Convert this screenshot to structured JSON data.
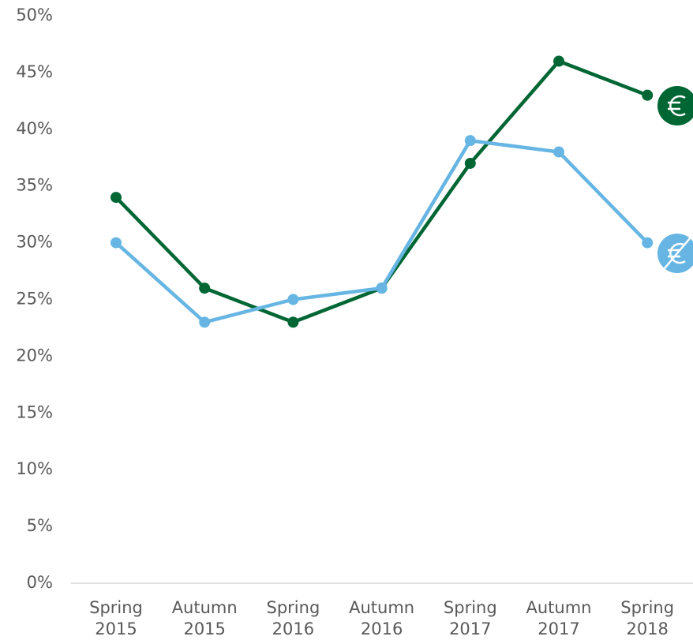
{
  "chart_data": {
    "type": "line",
    "categories": [
      "Spring 2015",
      "Autumn 2015",
      "Spring 2016",
      "Autumn 2016",
      "Spring 2017",
      "Autumn 2017",
      "Spring 2018"
    ],
    "series": [
      {
        "color": "#006633",
        "values": [
          34,
          26,
          23,
          26,
          37,
          46,
          43
        ]
      },
      {
        "color": "#66b5e3",
        "values": [
          30,
          23,
          25,
          26,
          39,
          38,
          30
        ]
      }
    ],
    "ylim": [
      0,
      50
    ],
    "yticks": [
      {
        "value": 0,
        "label": "0%"
      },
      {
        "value": 5,
        "label": "5%"
      },
      {
        "value": 10,
        "label": "10%"
      },
      {
        "value": 15,
        "label": "15%"
      },
      {
        "value": 20,
        "label": "20%"
      },
      {
        "value": 25,
        "label": "25%"
      },
      {
        "value": 30,
        "label": "30%"
      },
      {
        "value": 35,
        "label": "35%"
      },
      {
        "value": 40,
        "label": "40%"
      },
      {
        "value": 45,
        "label": "45%"
      },
      {
        "value": 50,
        "label": "50%"
      }
    ],
    "grid": false
  }
}
